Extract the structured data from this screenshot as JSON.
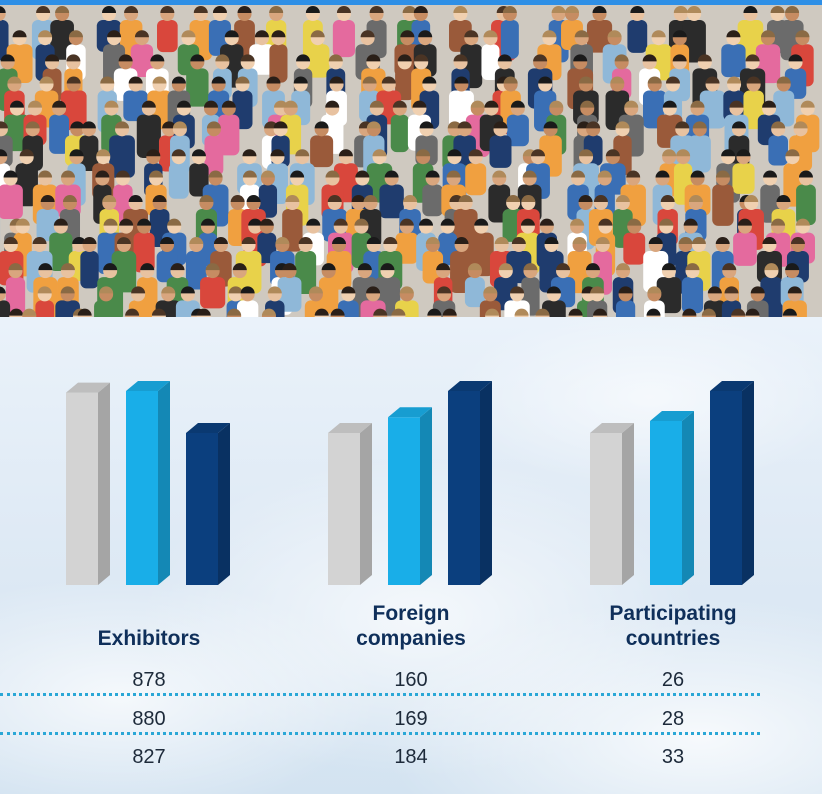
{
  "chart_data": {
    "type": "bar",
    "groups": [
      {
        "title_lines": [
          "Exhibitors"
        ],
        "values": [
          878,
          880,
          827
        ]
      },
      {
        "title_lines": [
          "Foreign",
          "companies"
        ],
        "values": [
          160,
          169,
          184
        ]
      },
      {
        "title_lines": [
          "Participating",
          "countries"
        ],
        "values": [
          26,
          28,
          33
        ]
      }
    ],
    "series_colors": [
      "#d3d3d3",
      "#19aee8",
      "#0b3f7e"
    ]
  },
  "table": {
    "rows": [
      [
        "878",
        "160",
        "26"
      ],
      [
        "880",
        "169",
        "28"
      ],
      [
        "827",
        "184",
        "33"
      ]
    ]
  }
}
